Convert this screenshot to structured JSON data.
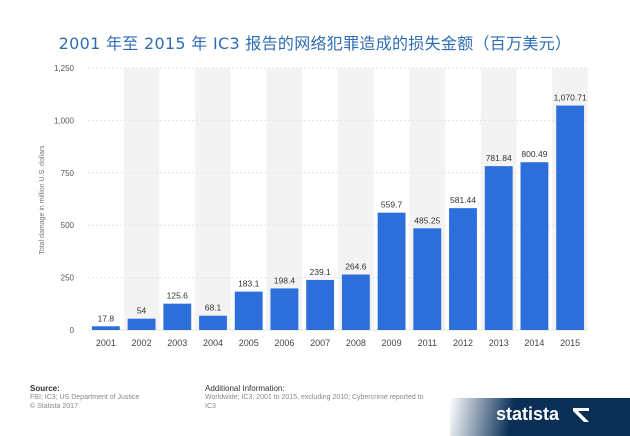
{
  "title": "2001 年至 2015 年 IC3 报告的网络犯罪造成的损失金额（百万美元）",
  "chart_data": {
    "type": "bar",
    "categories": [
      "2001",
      "2002",
      "2003",
      "2004",
      "2005",
      "2006",
      "2007",
      "2008",
      "2009",
      "2011",
      "2012",
      "2013",
      "2014",
      "2015"
    ],
    "values": [
      17.8,
      54,
      125.6,
      68.1,
      183.1,
      198.4,
      239.1,
      264.6,
      559.7,
      485.25,
      581.44,
      781.84,
      800.49,
      1070.71
    ],
    "labels": [
      "17.8",
      "54",
      "125.6",
      "68.1",
      "183.1",
      "198.4",
      "239.1",
      "264.6",
      "559.7",
      "485.25",
      "581.44",
      "781.84",
      "800.49",
      "1,070.71"
    ],
    "ylabel": "Total damage in million U.S. dollars",
    "ylim": [
      0,
      1250
    ],
    "yticks": [
      0,
      250,
      500,
      750,
      1000,
      1250
    ],
    "ytick_labels": [
      "0",
      "250",
      "500",
      "750",
      "1,000",
      "1,250"
    ],
    "grid": true,
    "bar_color": "#2c6fdb"
  },
  "source": {
    "heading": "Source:",
    "line1": "FBI; IC3; US Department of Justice",
    "line2": "© Statista 2017"
  },
  "additional": {
    "heading": "Additional Information:",
    "text": "Worldwide; IC3; 2001 to 2015, excluding 2010; Cybercrime reported to IC3"
  },
  "brand": "statista"
}
